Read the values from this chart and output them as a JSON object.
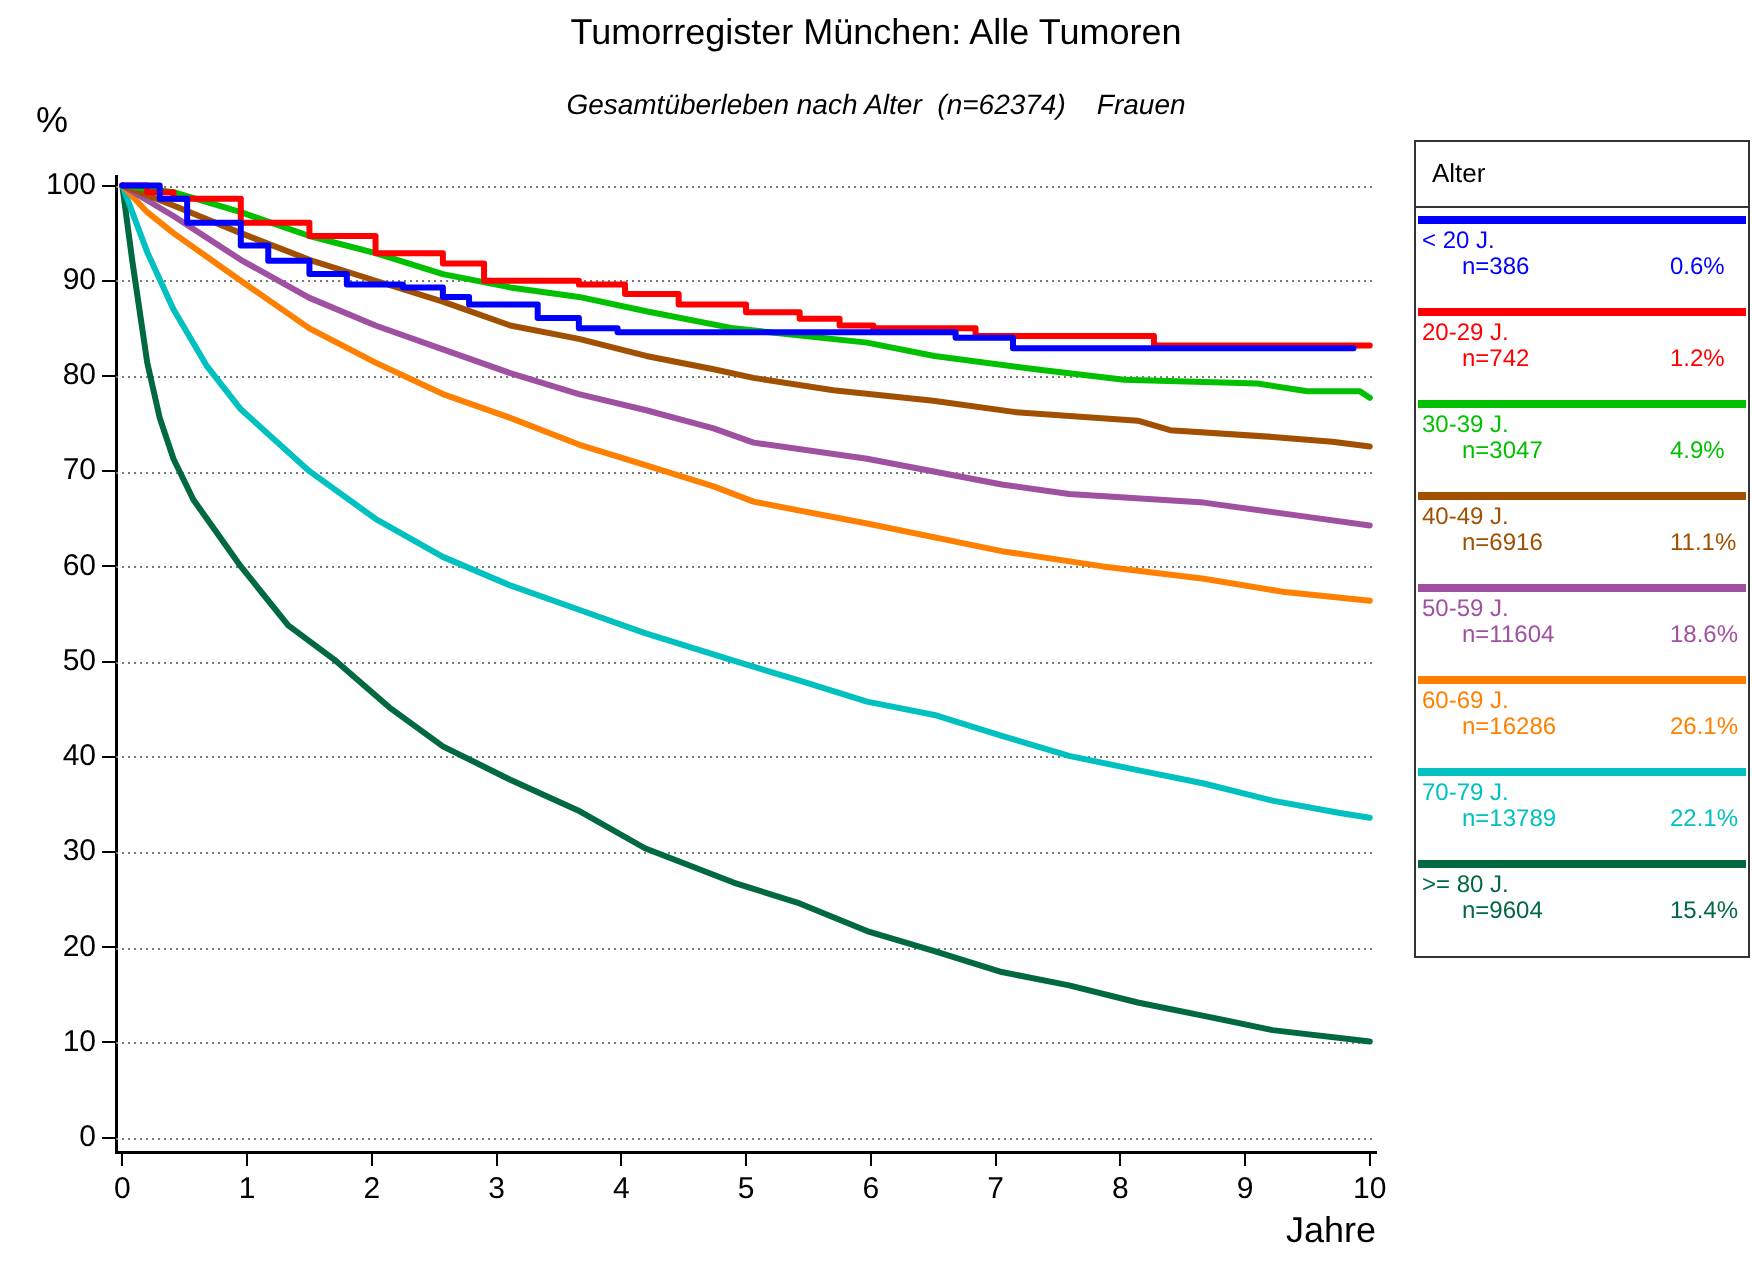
{
  "chart_data": {
    "type": "line",
    "title": "Tumorregister München: Alle Tumoren",
    "subtitle": "Gesamtüberleben nach Alter  (n=62374)    Frauen",
    "ylabel": "%",
    "xlabel": "Jahre",
    "legend_title": "Alter",
    "legend": "right",
    "grid": "y",
    "xlim": [
      -0.05,
      10.05
    ],
    "xticks": [
      0,
      1,
      2,
      3,
      4,
      5,
      6,
      7,
      8,
      9,
      10
    ],
    "ylim": [
      -1.5,
      101
    ],
    "yticks": [
      0,
      10,
      20,
      30,
      40,
      50,
      60,
      70,
      80,
      90,
      100
    ],
    "series": [
      {
        "name": "< 20 J.\nn=386\n0.6%",
        "color": "#0000ff",
        "type": "step",
        "x": [
          0,
          0.3,
          0.52,
          0.95,
          1.17,
          1.5,
          1.8,
          2.25,
          2.57,
          2.78,
          3.33,
          3.66,
          3.97,
          6.68,
          7.14,
          9.87
        ],
        "values": [
          100,
          98.6,
          96.1,
          93.7,
          92.1,
          90.7,
          89.6,
          89.3,
          88.3,
          87.5,
          86.1,
          85,
          84.6,
          84,
          82.9,
          82.9
        ]
      },
      {
        "name": "20-29 J.\nn=742\n1.2%",
        "color": "#ff0000",
        "type": "step",
        "x": [
          0,
          0.2,
          0.41,
          0.95,
          1.5,
          2.03,
          2.57,
          2.9,
          3.66,
          4.03,
          4.46,
          5.0,
          5.43,
          5.75,
          6.02,
          6.84,
          8.27,
          10
        ],
        "values": [
          100,
          99.3,
          98.6,
          96.1,
          94.7,
          92.9,
          91.8,
          90,
          89.6,
          88.6,
          87.5,
          86.7,
          86,
          85.3,
          85,
          84.2,
          83.2,
          83.2
        ]
      },
      {
        "name": "30-39 J.\nn=3047\n4.9%",
        "color": "#00c000",
        "x": [
          0,
          0.41,
          0.95,
          1.5,
          2.03,
          2.57,
          3.11,
          3.66,
          4.2,
          4.9,
          5.97,
          6.51,
          7.32,
          8.03,
          9.1,
          9.5,
          9.92,
          10
        ],
        "values": [
          100,
          99.3,
          97.2,
          94.7,
          92.9,
          90.7,
          89.3,
          88.3,
          86.8,
          85,
          83.5,
          82.1,
          80.7,
          79.6,
          79.2,
          78.4,
          78.4,
          77.7
        ]
      },
      {
        "name": "40-49 J.\nn=6916\n11.1%",
        "color": "#a05000",
        "x": [
          0,
          0.41,
          0.95,
          1.5,
          2.03,
          2.57,
          3.11,
          3.66,
          4.2,
          4.74,
          5.06,
          5.7,
          6.5,
          7.16,
          8.14,
          8.4,
          9.22,
          9.7,
          10
        ],
        "values": [
          100,
          97.9,
          95,
          92.2,
          90,
          87.8,
          85.3,
          83.9,
          82.1,
          80.7,
          79.8,
          78.5,
          77.4,
          76.2,
          75.3,
          74.3,
          73.6,
          73.1,
          72.6
        ]
      },
      {
        "name": "50-59 J.\nn=11604\n18.6%",
        "color": "#a050a0",
        "x": [
          0,
          0.41,
          0.95,
          1.5,
          2.03,
          2.57,
          3.11,
          3.66,
          4.2,
          4.74,
          5.06,
          5.97,
          7.05,
          7.59,
          8.67,
          9.5,
          10
        ],
        "values": [
          100,
          96.8,
          92.2,
          88.2,
          85.3,
          82.8,
          80.3,
          78.1,
          76.4,
          74.5,
          73,
          71.3,
          68.6,
          67.6,
          66.7,
          65.2,
          64.3
        ]
      },
      {
        "name": "60-69 J.\nn=16286\n26.1%",
        "color": "#ff8000",
        "x": [
          0,
          0.2,
          0.41,
          0.95,
          1.5,
          2.03,
          2.57,
          3.11,
          3.66,
          4.2,
          4.74,
          5.06,
          5.97,
          7.05,
          7.86,
          8.67,
          9.32,
          10
        ],
        "values": [
          100,
          97.2,
          95,
          90,
          85,
          81.4,
          78.1,
          75.6,
          72.8,
          70.6,
          68.4,
          66.8,
          64.5,
          61.6,
          60,
          58.7,
          57.3,
          56.4
        ]
      },
      {
        "name": "70-79 J.\nn=13789\n22.1%",
        "color": "#00c0c0",
        "x": [
          0,
          0.2,
          0.41,
          0.68,
          0.95,
          1.5,
          2.03,
          2.57,
          3.11,
          3.65,
          4.19,
          4.9,
          5.43,
          5.97,
          6.51,
          7.05,
          7.59,
          8.14,
          8.67,
          9.22,
          9.76,
          10
        ],
        "values": [
          100,
          93,
          87,
          81,
          76.5,
          70,
          65,
          61,
          58,
          55.5,
          53,
          50.1,
          48,
          45.8,
          44.4,
          42.2,
          40.1,
          38.6,
          37.2,
          35.4,
          34.1,
          33.6
        ]
      },
      {
        "name": ">= 80 J.\nn=9604\n15.4%",
        "color": "#006940",
        "x": [
          0,
          0.08,
          0.2,
          0.3,
          0.41,
          0.57,
          0.95,
          1.33,
          1.71,
          2.14,
          2.57,
          3.11,
          3.65,
          4.19,
          4.9,
          5.43,
          5.97,
          6.51,
          7.05,
          7.59,
          8.14,
          8.67,
          9.22,
          10
        ],
        "values": [
          100,
          92.1,
          81.4,
          75.6,
          71.3,
          67,
          60,
          53.8,
          50.1,
          45.2,
          41.1,
          37.6,
          34.4,
          30.4,
          26.8,
          24.6,
          21.7,
          19.6,
          17.4,
          16,
          14.2,
          12.8,
          11.3,
          10.1
        ]
      }
    ]
  }
}
